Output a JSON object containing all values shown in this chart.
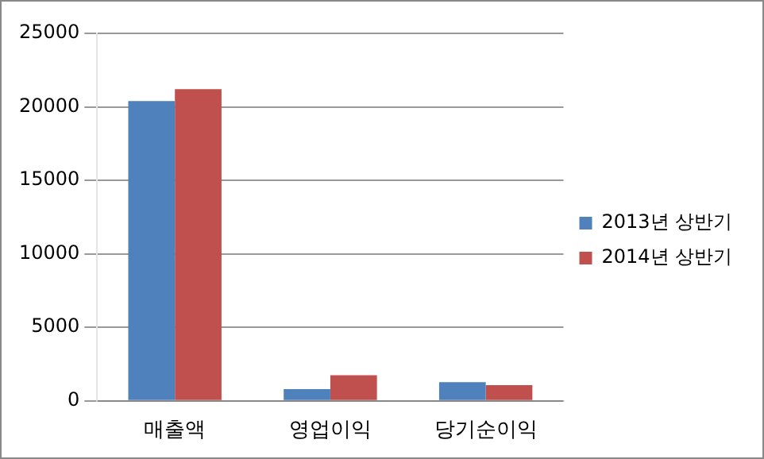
{
  "chart_data": {
    "type": "bar",
    "categories": [
      "매출액",
      "영업이익",
      "당기순이익"
    ],
    "series": [
      {
        "name": "2013년 상반기",
        "color": "#4f81bd",
        "values": [
          20400,
          800,
          1270
        ]
      },
      {
        "name": "2014년 상반기",
        "color": "#c0504d",
        "values": [
          21200,
          1750,
          1070
        ]
      }
    ],
    "ylim": [
      0,
      25000
    ],
    "yticks": [
      0,
      5000,
      10000,
      15000,
      20000,
      25000
    ],
    "grid": "y",
    "legend": "right"
  }
}
